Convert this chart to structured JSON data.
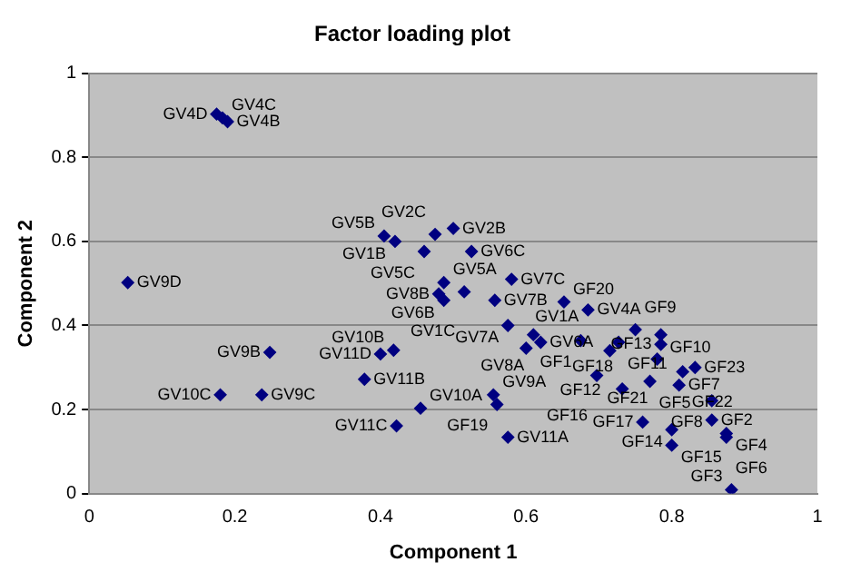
{
  "chart_data": {
    "type": "scatter",
    "title": "Factor loading plot",
    "xlabel": "Component 1",
    "ylabel": "Component 2",
    "xlim": [
      0,
      1
    ],
    "xticks": [
      0,
      0.2,
      0.4,
      0.6,
      0.8,
      1
    ],
    "ylim": [
      0,
      1
    ],
    "yticks": [
      0,
      0.2,
      0.4,
      0.6,
      0.8,
      1
    ],
    "grid": "y",
    "legend": false,
    "marker": "diamond",
    "series": [
      {
        "color": "#000080",
        "x": [
          0.175,
          0.183,
          0.19,
          0.053,
          0.405,
          0.42,
          0.475,
          0.5,
          0.46,
          0.487,
          0.48,
          0.487,
          0.515,
          0.557,
          0.525,
          0.58,
          0.652,
          0.685,
          0.75,
          0.785,
          0.575,
          0.61,
          0.62,
          0.675,
          0.727,
          0.715,
          0.785,
          0.78,
          0.6,
          0.248,
          0.18,
          0.237,
          0.418,
          0.4,
          0.378,
          0.455,
          0.422,
          0.555,
          0.56,
          0.575,
          0.697,
          0.732,
          0.77,
          0.81,
          0.815,
          0.832,
          0.855,
          0.76,
          0.8,
          0.8,
          0.855,
          0.875,
          0.875,
          0.882
        ],
        "values": [
          0.903,
          0.894,
          0.885,
          0.502,
          0.613,
          0.6,
          0.617,
          0.631,
          0.576,
          0.502,
          0.475,
          0.46,
          0.48,
          0.46,
          0.576,
          0.51,
          0.456,
          0.437,
          0.39,
          0.378,
          0.4,
          0.378,
          0.36,
          0.364,
          0.36,
          0.34,
          0.355,
          0.32,
          0.346,
          0.336,
          0.235,
          0.235,
          0.341,
          0.332,
          0.272,
          0.203,
          0.161,
          0.235,
          0.212,
          0.134,
          0.281,
          0.249,
          0.267,
          0.258,
          0.29,
          0.3,
          0.221,
          0.17,
          0.152,
          0.115,
          0.175,
          0.143,
          0.134,
          0.009
        ]
      }
    ],
    "annotations": [
      {
        "text": "GV4D",
        "x": 0.175,
        "y": 0.903
      },
      {
        "text": "GV4C",
        "x": 0.183,
        "y": 0.894
      },
      {
        "text": "GV4B",
        "x": 0.19,
        "y": 0.885
      },
      {
        "text": "GV9D",
        "x": 0.053,
        "y": 0.502
      },
      {
        "text": "GV5B",
        "x": 0.405,
        "y": 0.613
      },
      {
        "text": "GV1B",
        "x": 0.42,
        "y": 0.6
      },
      {
        "text": "GV2C",
        "x": 0.475,
        "y": 0.617
      },
      {
        "text": "GV2B",
        "x": 0.5,
        "y": 0.631
      },
      {
        "text": "GV5C",
        "x": 0.46,
        "y": 0.576
      },
      {
        "text": "GV5A",
        "x": 0.487,
        "y": 0.502
      },
      {
        "text": "GV8B",
        "x": 0.48,
        "y": 0.475
      },
      {
        "text": "GV6B",
        "x": 0.487,
        "y": 0.46
      },
      {
        "text": "GV1C",
        "x": 0.515,
        "y": 0.48
      },
      {
        "text": "GV7B",
        "x": 0.557,
        "y": 0.46
      },
      {
        "text": "GV6C",
        "x": 0.525,
        "y": 0.576
      },
      {
        "text": "GV7C",
        "x": 0.58,
        "y": 0.51
      },
      {
        "text": "GF20",
        "x": 0.652,
        "y": 0.456
      },
      {
        "text": "GV4A",
        "x": 0.685,
        "y": 0.437
      },
      {
        "text": "GF9",
        "x": 0.75,
        "y": 0.39
      },
      {
        "text": "GF10",
        "x": 0.785,
        "y": 0.378
      },
      {
        "text": "GV7A",
        "x": 0.575,
        "y": 0.4
      },
      {
        "text": "GV8A",
        "x": 0.61,
        "y": 0.378
      },
      {
        "text": "GV6A",
        "x": 0.62,
        "y": 0.36
      },
      {
        "text": "GF1",
        "x": 0.675,
        "y": 0.364
      },
      {
        "text": "GF11",
        "x": 0.727,
        "y": 0.36
      },
      {
        "text": "GF12",
        "x": 0.715,
        "y": 0.34
      },
      {
        "text": "GF13",
        "x": 0.785,
        "y": 0.355
      },
      {
        "text": "GF21",
        "x": 0.78,
        "y": 0.32
      },
      {
        "text": "GV1A",
        "x": 0.6,
        "y": 0.346
      },
      {
        "text": "GV9B",
        "x": 0.248,
        "y": 0.336
      },
      {
        "text": "GV10C",
        "x": 0.18,
        "y": 0.235
      },
      {
        "text": "GV9C",
        "x": 0.237,
        "y": 0.235
      },
      {
        "text": "GV10B",
        "x": 0.418,
        "y": 0.341
      },
      {
        "text": "GV11D",
        "x": 0.4,
        "y": 0.332
      },
      {
        "text": "GV11B",
        "x": 0.378,
        "y": 0.272
      },
      {
        "text": "GV10A",
        "x": 0.455,
        "y": 0.203
      },
      {
        "text": "GV11C",
        "x": 0.422,
        "y": 0.161
      },
      {
        "text": "GV9A",
        "x": 0.555,
        "y": 0.235
      },
      {
        "text": "GF19",
        "x": 0.56,
        "y": 0.212
      },
      {
        "text": "GV11A",
        "x": 0.575,
        "y": 0.134
      },
      {
        "text": "GF16",
        "x": 0.697,
        "y": 0.281
      },
      {
        "text": "GF18",
        "x": 0.732,
        "y": 0.249
      },
      {
        "text": "GF5",
        "x": 0.77,
        "y": 0.267
      },
      {
        "text": "GF7",
        "x": 0.81,
        "y": 0.258
      },
      {
        "text": "GF22",
        "x": 0.815,
        "y": 0.29
      },
      {
        "text": "GF23",
        "x": 0.832,
        "y": 0.3
      },
      {
        "text": "GF8",
        "x": 0.855,
        "y": 0.221
      },
      {
        "text": "GF17",
        "x": 0.76,
        "y": 0.17
      },
      {
        "text": "GF14",
        "x": 0.8,
        "y": 0.152
      },
      {
        "text": "GF15",
        "x": 0.8,
        "y": 0.115
      },
      {
        "text": "GF2",
        "x": 0.855,
        "y": 0.175
      },
      {
        "text": "GF4",
        "x": 0.875,
        "y": 0.143
      },
      {
        "text": "GF6",
        "x": 0.875,
        "y": 0.134
      },
      {
        "text": "GF3",
        "x": 0.882,
        "y": 0.009
      }
    ]
  }
}
